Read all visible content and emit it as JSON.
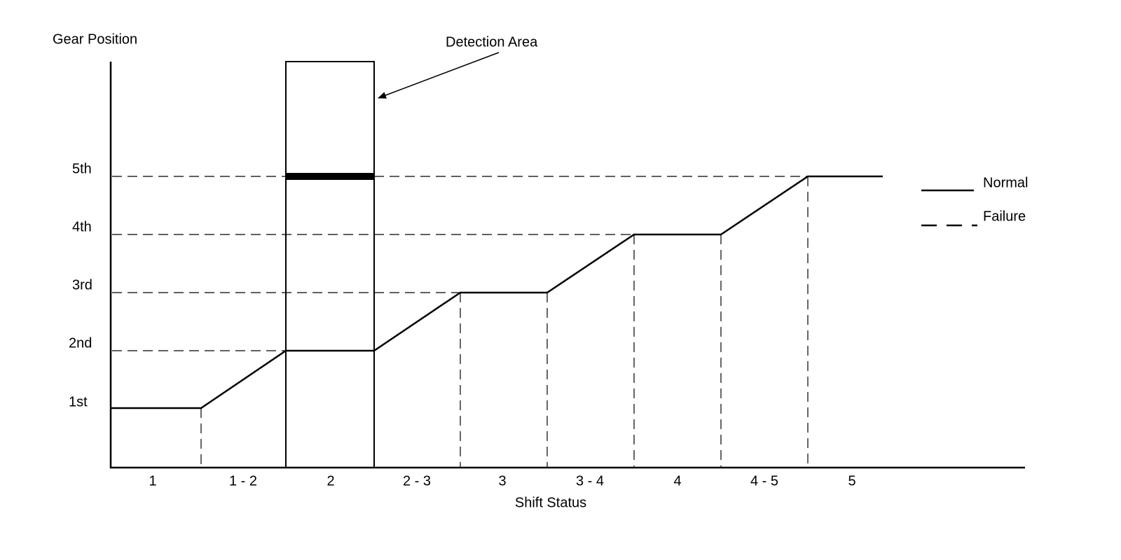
{
  "diagram": {
    "y_axis_label": "Gear Position",
    "x_axis_label": "Shift Status",
    "annotation": "Detection Area",
    "gears": [
      "1st",
      "2nd",
      "3rd",
      "4th",
      "5th"
    ],
    "shift_status": [
      "1",
      "1 - 2",
      "2",
      "2 - 3",
      "3",
      "3 - 4",
      "4",
      "4 - 5",
      "5"
    ],
    "legend": [
      "Normal",
      "Failure"
    ]
  }
}
